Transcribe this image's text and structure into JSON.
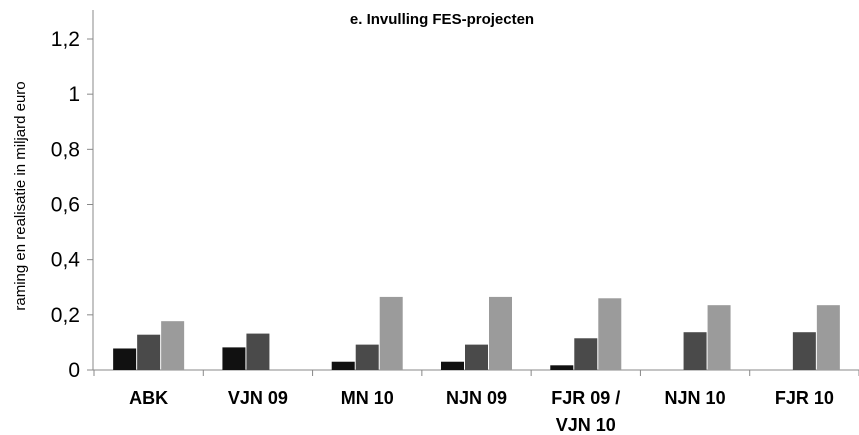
{
  "chart_data": {
    "type": "bar",
    "title": "e. Invulling FES-projecten",
    "ylabel": "raming en realisatie in miljard euro",
    "xlabel": "",
    "ylim": [
      0,
      1.3
    ],
    "yticks": [
      0,
      0.2,
      0.4,
      0.6,
      0.8,
      1,
      1.2
    ],
    "ytick_labels": [
      "0",
      "0,2",
      "0,4",
      "0,6",
      "0,8",
      "1",
      "1,2"
    ],
    "categories": [
      [
        "ABK"
      ],
      [
        "VJN 09"
      ],
      [
        "MN 10"
      ],
      [
        "NJN 09"
      ],
      [
        "FJR 09 /",
        "VJN 10"
      ],
      [
        "NJN 10"
      ],
      [
        "FJR 10"
      ]
    ],
    "series": [
      {
        "color": "#111111",
        "values": [
          0.078,
          0.082,
          0.03,
          0.03,
          0.017,
          0,
          0
        ]
      },
      {
        "color": "#4a4a4a",
        "values": [
          0.128,
          0.132,
          0.092,
          0.092,
          0.115,
          0.137,
          0.137
        ]
      },
      {
        "color": "#9b9b9b",
        "values": [
          0.177,
          0,
          0.265,
          0.265,
          0.26,
          0.235,
          0.235
        ]
      }
    ],
    "grid": false,
    "legend": "none"
  }
}
